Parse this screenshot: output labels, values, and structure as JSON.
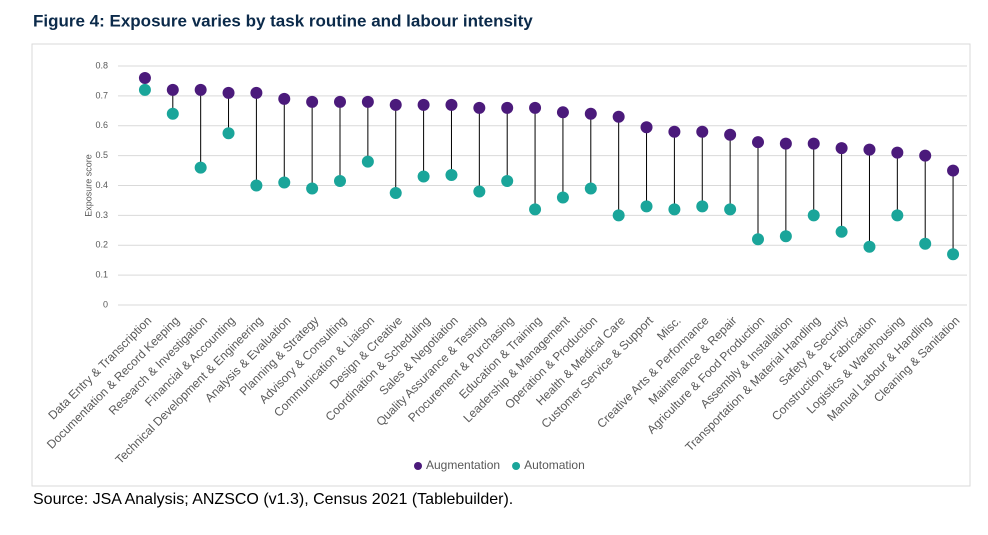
{
  "chart_data": {
    "type": "dumbbell",
    "title": "Figure 4: Exposure varies by task routine and labour intensity",
    "y_label": "Exposure score",
    "source": "Source: JSA Analysis; ANZSCO (v1.3), Census 2021 (Tablebuilder).",
    "categories": [
      "Data Entry & Transcription",
      "Documentation & Record Keeping",
      "Research & Investigation",
      "Financial & Accounting",
      "Technical Development & Engineering",
      "Analysis & Evaluation",
      "Planning & Strategy",
      "Advisory & Consulting",
      "Communication & Liaison",
      "Design & Creative",
      "Coordination & Scheduling",
      "Sales & Negotiation",
      "Quality Assurance & Testing",
      "Procurement & Purchasing",
      "Education & Training",
      "Leadership & Management",
      "Operation & Production",
      "Health & Medical Care",
      "Customer Service & Support",
      "Misc.",
      "Creative Arts & Performance",
      "Maintenance & Repair",
      "Agriculture & Food Production",
      "Assembly & Installation",
      "Transportation & Material Handling",
      "Safety & Security",
      "Construction & Fabrication",
      "Logistics & Warehousing",
      "Manual Labour & Handling",
      "Cleaning & Sanitation"
    ],
    "series": [
      {
        "name": "Augmentation",
        "color": "#4b1a7b",
        "values": [
          0.76,
          0.72,
          0.72,
          0.71,
          0.71,
          0.69,
          0.68,
          0.68,
          0.68,
          0.67,
          0.67,
          0.67,
          0.66,
          0.66,
          0.66,
          0.645,
          0.64,
          0.63,
          0.595,
          0.58,
          0.58,
          0.57,
          0.545,
          0.54,
          0.54,
          0.525,
          0.52,
          0.51,
          0.5,
          0.45
        ]
      },
      {
        "name": "Automation",
        "color": "#1aa59a",
        "values": [
          0.72,
          0.64,
          0.46,
          0.575,
          0.4,
          0.41,
          0.39,
          0.415,
          0.48,
          0.375,
          0.43,
          0.435,
          0.38,
          0.415,
          0.32,
          0.36,
          0.39,
          0.3,
          0.33,
          0.32,
          0.33,
          0.32,
          0.22,
          0.23,
          0.3,
          0.245,
          0.195,
          0.3,
          0.205,
          0.17
        ]
      }
    ],
    "ylim": [
      0,
      0.8
    ],
    "yticks": [
      0,
      0.1,
      0.2,
      0.3,
      0.4,
      0.5,
      0.6,
      0.7,
      0.8
    ],
    "grid": true,
    "legend": "bottom"
  }
}
